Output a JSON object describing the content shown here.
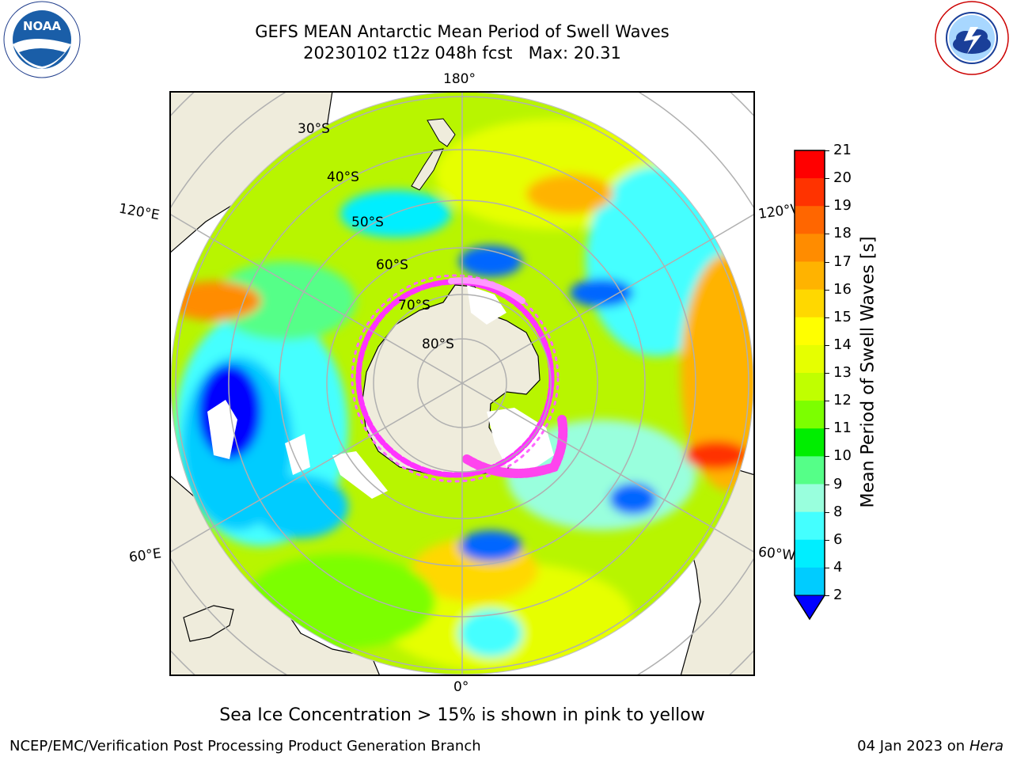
{
  "header": {
    "title_line1": "GEFS MEAN Antarctic Mean Period of Swell Waves",
    "title_line2": "20230102 t12z 048h fcst   Max: 20.31"
  },
  "logos": {
    "left": "NOAA",
    "left_ring_text": "NATIONAL OCEANIC AND ATMOSPHERIC ADMINISTRATION · U.S. DEPARTMENT OF COMMERCE",
    "right_ring_text": "NATIONAL WEATHER SERVICE"
  },
  "map": {
    "projection": "south-polar-stereographic",
    "longitude_labels": {
      "top": "180°",
      "bottom": "0°",
      "upper_left": "120°E",
      "upper_right": "120°W",
      "lower_left": "60°E",
      "lower_right": "60°W"
    },
    "latitude_labels": [
      "30°S",
      "40°S",
      "50°S",
      "60°S",
      "70°S",
      "80°S"
    ]
  },
  "colorbar": {
    "label": "Mean Period of Swell Waves [s]",
    "ticks": [
      "21",
      "20",
      "19",
      "18",
      "17",
      "16",
      "15",
      "14",
      "13",
      "12",
      "11",
      "10",
      "9",
      "8",
      "6",
      "4",
      "2"
    ],
    "colors_top_to_bottom": [
      "#ff0000",
      "#ff3300",
      "#ff6600",
      "#ff8c00",
      "#ffb300",
      "#ffd800",
      "#ffff00",
      "#e6ff00",
      "#c0ff00",
      "#7cff00",
      "#00ee00",
      "#55ff88",
      "#99ffdd",
      "#44ffff",
      "#00eeff",
      "#00ccff",
      "#0066ff"
    ],
    "extend_color": "#0000ff"
  },
  "caption": "Sea Ice Concentration > 15% is shown in pink to yellow",
  "footer": {
    "left": "NCEP/EMC/Verification Post Processing Product Generation Branch",
    "right_prefix": "04 Jan 2023 on ",
    "right_host": "Hera"
  },
  "colors": {
    "land": "#efecdc",
    "ocean_background": "#b8f500",
    "sea_ice": "#ff33ff",
    "graticule": "#b0b0b0"
  }
}
